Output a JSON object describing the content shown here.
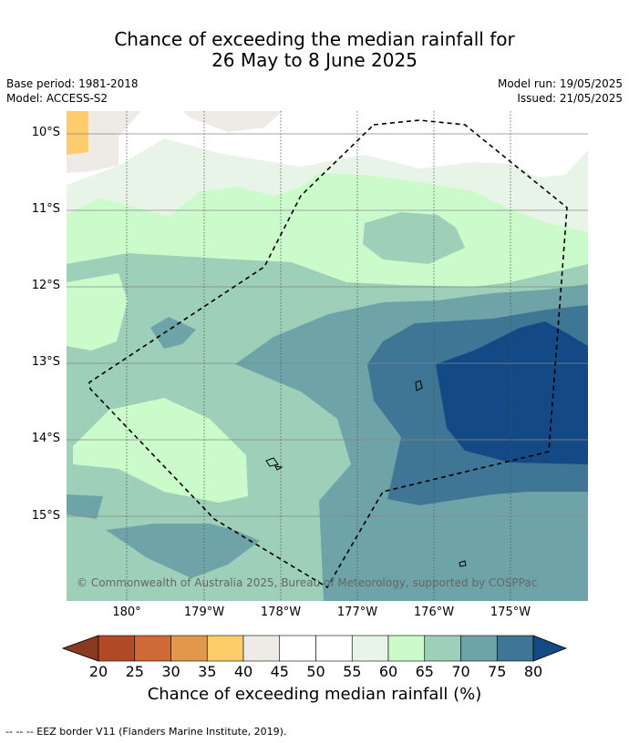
{
  "title_line1": "Chance of exceeding the median rainfall for",
  "title_line2": "26 May to 8 June 2025",
  "base_period": "Base period: 1981-2018",
  "model": "Model: ACCESS-S2",
  "model_run": "Model run: 19/05/2025",
  "issued": "Issued: 21/05/2025",
  "lat_ticks": [
    "10°S",
    "11°S",
    "12°S",
    "13°S",
    "14°S",
    "15°S"
  ],
  "lon_ticks": [
    "180°",
    "179°W",
    "178°W",
    "177°W",
    "176°W",
    "175°W"
  ],
  "copyright": "© Commonwealth of Australia 2025, Bureau of Meteorology, supported by COSPPac",
  "colorbar": {
    "labels": [
      "20",
      "25",
      "30",
      "35",
      "40",
      "45",
      "50",
      "55",
      "60",
      "65",
      "70",
      "75",
      "80"
    ],
    "title": "Chance of exceeding median rainfall (%)",
    "colors": [
      "#8b3a22",
      "#b34a26",
      "#cf6a36",
      "#e2974a",
      "#fdcc6b",
      "#eeebe6",
      "#ffffff",
      "#ffffff",
      "#e8f4e7",
      "#cbfbca",
      "#9dcfb9",
      "#6ea3a8",
      "#3f7595",
      "#134a85"
    ]
  },
  "footer": "--  --  -- EEZ border V11 (Flanders Marine Institute, 2019)."
}
